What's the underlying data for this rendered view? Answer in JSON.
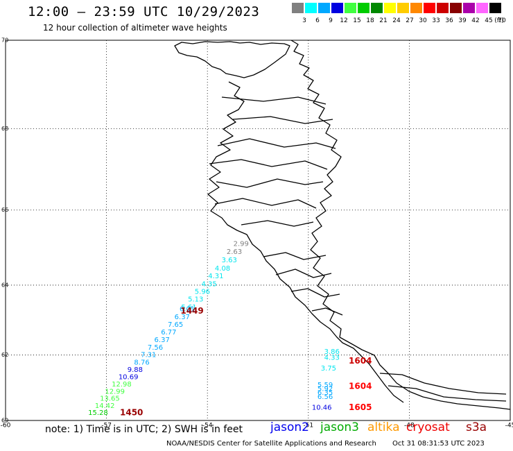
{
  "header": {
    "title": "12:00 – 23:59 UTC 10/29/2023",
    "subtitle": "12 hour collection of altimeter wave heights"
  },
  "legend": {
    "unit_label": "(ft)",
    "items": [
      {
        "label": "3",
        "color": "#808080"
      },
      {
        "label": "6",
        "color": "#00ffff"
      },
      {
        "label": "9",
        "color": "#00a8ff"
      },
      {
        "label": "12",
        "color": "#0000e0"
      },
      {
        "label": "15",
        "color": "#40ff40"
      },
      {
        "label": "18",
        "color": "#00cc00"
      },
      {
        "label": "21",
        "color": "#008800"
      },
      {
        "label": "24",
        "color": "#ffff00"
      },
      {
        "label": "27",
        "color": "#ffcc00"
      },
      {
        "label": "30",
        "color": "#ff8800"
      },
      {
        "label": "33",
        "color": "#ff0000"
      },
      {
        "label": "36",
        "color": "#cc0000"
      },
      {
        "label": "39",
        "color": "#880000"
      },
      {
        "label": "42",
        "color": "#aa00aa"
      },
      {
        "label": "45",
        "color": "#ff66ff"
      },
      {
        "label": "70",
        "color": "#000000"
      }
    ]
  },
  "map": {
    "lon_range": [
      -60,
      -45
    ],
    "lat_range": [
      60,
      70
    ],
    "lon_ticks": [
      {
        "value": -60,
        "label": "-60"
      },
      {
        "value": -57,
        "label": "-57"
      },
      {
        "value": -54,
        "label": "-54"
      },
      {
        "value": -51,
        "label": "-51"
      },
      {
        "value": -48,
        "label": "-48"
      },
      {
        "value": -45,
        "label": "-45"
      }
    ],
    "lat_ticks": [
      {
        "value": 60,
        "label": "60"
      },
      {
        "value": 62,
        "label": "62"
      },
      {
        "value": 64,
        "label": "64"
      },
      {
        "value": 66,
        "label": "66"
      },
      {
        "value": 68,
        "label": "68"
      },
      {
        "value": 70,
        "label": "70"
      }
    ],
    "land_color": "#000000",
    "grid": "dotted"
  },
  "track_a": [
    {
      "lon": -53.0,
      "lat": 65.12,
      "swh": "2.99",
      "color": "#808080"
    },
    {
      "lon": -53.2,
      "lat": 64.9,
      "swh": "2.63",
      "color": "#808080"
    },
    {
      "lon": -53.35,
      "lat": 64.68,
      "swh": "3.63",
      "color": "#00e5ee"
    },
    {
      "lon": -53.55,
      "lat": 64.46,
      "swh": "4.08",
      "color": "#00e5ee"
    },
    {
      "lon": -53.75,
      "lat": 64.25,
      "swh": "4.31",
      "color": "#00e5ee"
    },
    {
      "lon": -53.95,
      "lat": 64.03,
      "swh": "4.35",
      "color": "#00e5ee"
    },
    {
      "lon": -54.15,
      "lat": 63.82,
      "swh": "5.96",
      "color": "#00e5ee"
    },
    {
      "lon": -54.35,
      "lat": 63.6,
      "swh": "5.13",
      "color": "#00e5ee"
    },
    {
      "lon": -54.55,
      "lat": 63.38,
      "swh": "5.61",
      "color": "#00e5ee"
    },
    {
      "lon": -54.6,
      "lat": 63.33,
      "swh": "6.01",
      "color": "#00a8ff"
    },
    {
      "lon": -54.75,
      "lat": 63.1,
      "swh": "6.37",
      "color": "#00a8ff"
    },
    {
      "lon": -54.95,
      "lat": 62.88,
      "swh": "7.65",
      "color": "#00a8ff"
    },
    {
      "lon": -55.15,
      "lat": 62.66,
      "swh": "6.77",
      "color": "#00a8ff"
    },
    {
      "lon": -55.35,
      "lat": 62.44,
      "swh": "6.37",
      "color": "#00a8ff"
    },
    {
      "lon": -55.55,
      "lat": 62.22,
      "swh": "7.56",
      "color": "#00a8ff"
    },
    {
      "lon": -55.75,
      "lat": 62.0,
      "swh": "7.31",
      "color": "#00a8ff"
    },
    {
      "lon": -55.95,
      "lat": 61.78,
      "swh": "8.76",
      "color": "#00a8ff"
    },
    {
      "lon": -56.15,
      "lat": 61.56,
      "swh": "9.88",
      "color": "#0000e0"
    },
    {
      "lon": -56.35,
      "lat": 61.34,
      "swh": "10.69",
      "color": "#0000e0"
    },
    {
      "lon": -56.55,
      "lat": 61.12,
      "swh": "12.98",
      "color": "#40ff40"
    },
    {
      "lon": -56.75,
      "lat": 60.9,
      "swh": "12.99",
      "color": "#40ff40"
    },
    {
      "lon": -56.9,
      "lat": 60.68,
      "swh": "13.65",
      "color": "#40ff40"
    },
    {
      "lon": -57.05,
      "lat": 60.46,
      "swh": "14.42",
      "color": "#40ff40"
    },
    {
      "lon": -57.25,
      "lat": 60.24,
      "swh": "15.28",
      "color": "#00cc00"
    }
  ],
  "track_b": [
    {
      "lon": -50.3,
      "lat": 62.1,
      "swh": "3.86",
      "color": "#00e5ee"
    },
    {
      "lon": -50.3,
      "lat": 61.92,
      "swh": "4.33",
      "color": "#00e5ee"
    },
    {
      "lon": -50.4,
      "lat": 61.6,
      "swh": "3.75",
      "color": "#00e5ee"
    },
    {
      "lon": -50.5,
      "lat": 61.1,
      "swh": "5.59",
      "color": "#00a8ff"
    },
    {
      "lon": -50.5,
      "lat": 60.98,
      "swh": "5.92",
      "color": "#00a8ff"
    },
    {
      "lon": -50.5,
      "lat": 60.86,
      "swh": "6.35",
      "color": "#00a8ff"
    },
    {
      "lon": -50.5,
      "lat": 60.74,
      "swh": "6.56",
      "color": "#00a8ff"
    },
    {
      "lon": -50.6,
      "lat": 60.4,
      "swh": "10.46",
      "color": "#0000e0"
    }
  ],
  "pass_times": [
    {
      "label": "1449",
      "lon": -54.8,
      "lat": 63.27,
      "color": "#990000"
    },
    {
      "label": "1450",
      "lon": -56.6,
      "lat": 60.24,
      "color": "#990000"
    },
    {
      "label": "1604",
      "lon": -49.8,
      "lat": 61.82,
      "color": "#cc0000"
    },
    {
      "label": "1604",
      "lon": -49.8,
      "lat": 61.05,
      "color": "#ff0000"
    },
    {
      "label": "1605",
      "lon": -49.8,
      "lat": 60.4,
      "color": "#ff0000"
    }
  ],
  "footer": {
    "note": "note: 1) Time is in UTC; 2) SWH is in feet",
    "satellites": [
      {
        "label": "jason2",
        "color": "#0000ee"
      },
      {
        "label": "jason3",
        "color": "#00aa00"
      },
      {
        "label": "altika",
        "color": "#ff9900"
      },
      {
        "label": "cryosat",
        "color": "#ee0000"
      },
      {
        "label": "s3a",
        "color": "#990000"
      }
    ],
    "credit": "NOAA/NESDIS Center for Satellite Applications and Research",
    "generated": "Oct 31 08:31:53 UTC 2023"
  }
}
